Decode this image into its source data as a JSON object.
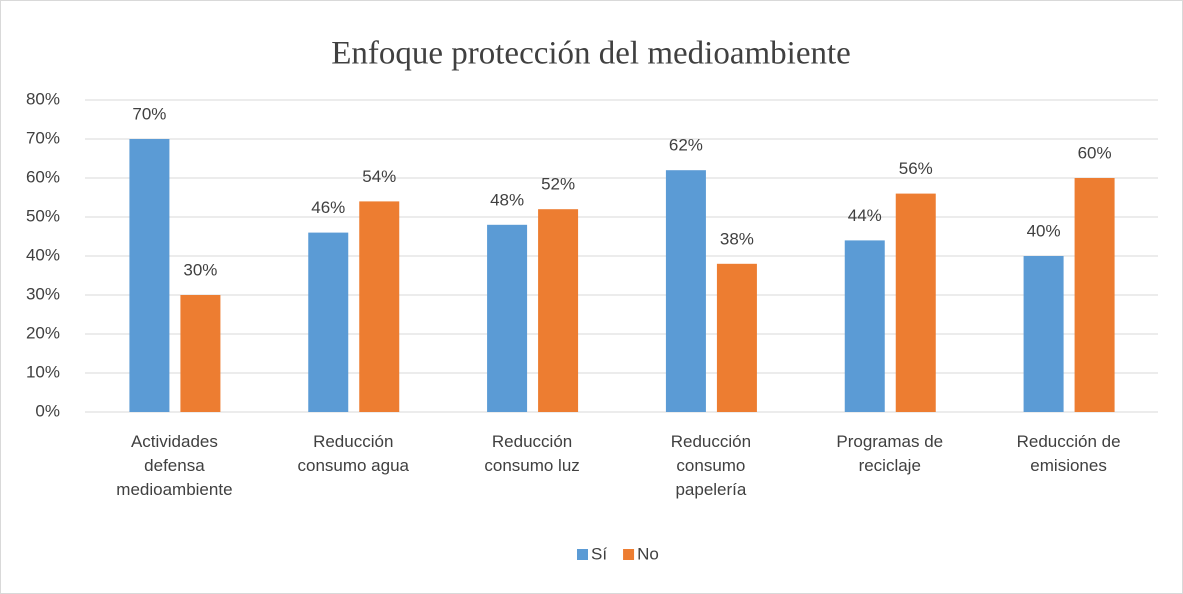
{
  "chart_data": {
    "type": "bar",
    "title": "Enfoque protección del medioambiente",
    "categories": [
      "Actividades defensa medioambiente",
      "Reducción consumo agua",
      "Reducción consumo luz",
      "Reducción consumo papelería",
      "Programas de reciclaje",
      "Reducción de emisiones"
    ],
    "series": [
      {
        "name": "Sí",
        "color": "#5b9bd5",
        "values": [
          70,
          46,
          48,
          62,
          44,
          40
        ],
        "value_labels": [
          "70%",
          "46%",
          "48%",
          "62%",
          "44%",
          "40%"
        ]
      },
      {
        "name": "No",
        "color": "#ed7d31",
        "values": [
          30,
          54,
          52,
          38,
          56,
          60
        ],
        "value_labels": [
          "30%",
          "54%",
          "52%",
          "38%",
          "56%",
          "60%"
        ]
      }
    ],
    "ylim": [
      0,
      80
    ],
    "yticks": [
      {
        "value": 0,
        "label": "0%"
      },
      {
        "value": 10,
        "label": "10%"
      },
      {
        "value": 20,
        "label": "20%"
      },
      {
        "value": 30,
        "label": "30%"
      },
      {
        "value": 40,
        "label": "40%"
      },
      {
        "value": 50,
        "label": "50%"
      },
      {
        "value": 60,
        "label": "60%"
      },
      {
        "value": 70,
        "label": "70%"
      },
      {
        "value": 80,
        "label": "80%"
      }
    ],
    "grid": true,
    "legend": "bottom"
  }
}
